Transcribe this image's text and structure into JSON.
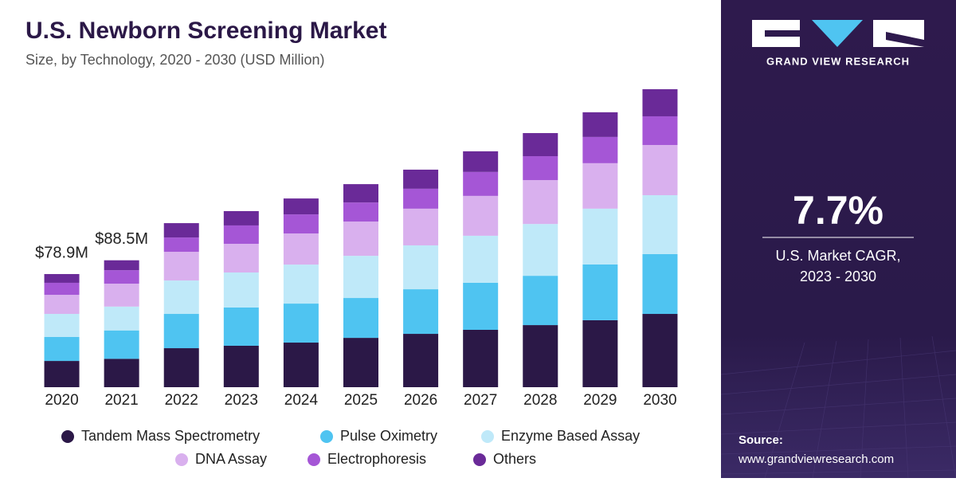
{
  "chart_data": {
    "type": "stacked-bar",
    "title": "U.S. Newborn Screening Market",
    "subtitle": "Size, by Technology, 2020 - 2030 (USD Million)",
    "categories": [
      "2020",
      "2021",
      "2022",
      "2023",
      "2024",
      "2025",
      "2026",
      "2027",
      "2028",
      "2029",
      "2030"
    ],
    "series": [
      {
        "name": "Tandem Mass Spectrometry",
        "color": "#2b1847",
        "values": [
          18.3,
          19.8,
          27.2,
          28.9,
          31.1,
          34.4,
          37.2,
          40.0,
          43.3,
          46.7,
          51.1
        ]
      },
      {
        "name": "Pulse Oximetry",
        "color": "#4fc4f1",
        "values": [
          16.7,
          19.8,
          23.9,
          26.7,
          27.2,
          27.8,
          31.1,
          32.8,
          34.4,
          38.9,
          41.7
        ]
      },
      {
        "name": "Enzyme Based Assay",
        "color": "#bfe9f9",
        "values": [
          16.1,
          16.6,
          23.3,
          24.4,
          27.2,
          29.4,
          30.6,
          32.8,
          36.1,
          38.9,
          41.1
        ]
      },
      {
        "name": "DNA Assay",
        "color": "#d9b0ee",
        "values": [
          13.3,
          16.0,
          20.0,
          20.0,
          21.7,
          23.9,
          25.6,
          27.8,
          30.6,
          31.7,
          35.0
        ]
      },
      {
        "name": "Electrophoresis",
        "color": "#a556d6",
        "values": [
          8.4,
          9.4,
          10.0,
          12.8,
          13.3,
          13.3,
          13.9,
          16.7,
          16.7,
          18.3,
          20.0
        ]
      },
      {
        "name": "Others",
        "color": "#6a2a98",
        "values": [
          6.1,
          6.9,
          10.0,
          10.0,
          11.1,
          12.8,
          13.3,
          14.4,
          16.1,
          17.2,
          18.9
        ]
      }
    ],
    "annotations": [
      {
        "category": "2020",
        "value": 78.9,
        "label": "$78.9M"
      },
      {
        "category": "2021",
        "value": 88.5,
        "label": "$88.5M"
      }
    ],
    "ylim": [
      0,
      210
    ],
    "legend": "bottom"
  },
  "panel": {
    "brand": "GRAND VIEW RESEARCH",
    "cagr": "7.7%",
    "cagr_caption": [
      "U.S. Market CAGR,",
      "2023 - 2030"
    ],
    "source_title": "Source:",
    "source_url": "www.grandviewresearch.com"
  }
}
